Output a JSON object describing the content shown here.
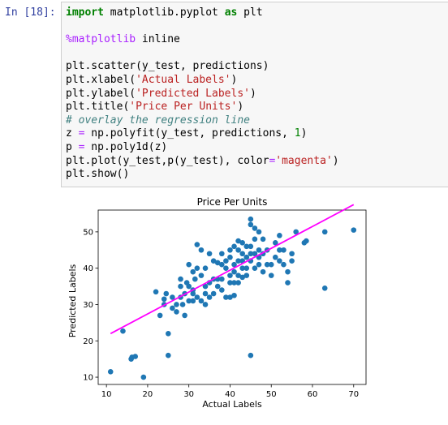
{
  "cell": {
    "prompt": "In [18]:",
    "lines": [
      [
        {
          "t": "import",
          "c": "kw"
        },
        {
          "t": " matplotlib.pyplot "
        },
        {
          "t": "as",
          "c": "kw"
        },
        {
          "t": " plt"
        }
      ],
      [],
      [
        {
          "t": "%matplotlib",
          "c": "mg"
        },
        {
          "t": " inline"
        }
      ],
      [],
      [
        {
          "t": "plt.scatter(y_test, predictions)"
        }
      ],
      [
        {
          "t": "plt.xlabel("
        },
        {
          "t": "'Actual Labels'",
          "c": "st"
        },
        {
          "t": ")"
        }
      ],
      [
        {
          "t": "plt.ylabel("
        },
        {
          "t": "'Predicted Labels'",
          "c": "st"
        },
        {
          "t": ")"
        }
      ],
      [
        {
          "t": "plt.title("
        },
        {
          "t": "'Price Per Units'",
          "c": "st"
        },
        {
          "t": ")"
        }
      ],
      [
        {
          "t": "# overlay the regression line",
          "c": "cm"
        }
      ],
      [
        {
          "t": "z "
        },
        {
          "t": "=",
          "c": "op"
        },
        {
          "t": " np.polyfit(y_test, predictions, "
        },
        {
          "t": "1",
          "c": "nm"
        },
        {
          "t": ")"
        }
      ],
      [
        {
          "t": "p "
        },
        {
          "t": "=",
          "c": "op"
        },
        {
          "t": " np.poly1d(z)"
        }
      ],
      [
        {
          "t": "plt.plot(y_test,p(y_test), color"
        },
        {
          "t": "=",
          "c": "op"
        },
        {
          "t": "'magenta'",
          "c": "st"
        },
        {
          "t": ")"
        }
      ],
      [
        {
          "t": "plt.show()"
        }
      ]
    ]
  },
  "chart_data": {
    "type": "scatter",
    "title": "Price Per Units",
    "xlabel": "Actual Labels",
    "ylabel": "Predicted Labels",
    "xlim": [
      8,
      73
    ],
    "ylim": [
      8,
      56
    ],
    "xticks": [
      10,
      20,
      30,
      40,
      50,
      60,
      70
    ],
    "yticks": [
      10,
      20,
      30,
      40,
      50
    ],
    "point_color": "#1f77b4",
    "line_color": "#ff00ff",
    "regression_line": {
      "x": [
        11,
        70
      ],
      "y": [
        22,
        57.5
      ]
    },
    "points": [
      [
        11,
        11.5
      ],
      [
        14,
        22.7
      ],
      [
        16,
        15
      ],
      [
        16.2,
        15.5
      ],
      [
        17,
        15.7
      ],
      [
        19,
        10
      ],
      [
        22,
        33.5
      ],
      [
        23,
        27
      ],
      [
        24,
        31.5
      ],
      [
        24,
        30
      ],
      [
        24.5,
        33
      ],
      [
        25,
        22
      ],
      [
        25,
        16
      ],
      [
        26,
        32
      ],
      [
        26,
        29
      ],
      [
        27,
        30
      ],
      [
        27,
        28
      ],
      [
        28,
        37
      ],
      [
        28,
        35
      ],
      [
        28,
        32
      ],
      [
        28.5,
        30
      ],
      [
        29,
        33
      ],
      [
        29,
        27
      ],
      [
        29.5,
        36
      ],
      [
        30,
        41
      ],
      [
        30,
        35
      ],
      [
        30,
        31
      ],
      [
        31,
        39
      ],
      [
        31,
        34
      ],
      [
        31,
        33
      ],
      [
        31,
        31
      ],
      [
        31.5,
        37
      ],
      [
        32,
        46.5
      ],
      [
        32,
        40
      ],
      [
        32,
        32
      ],
      [
        33,
        45
      ],
      [
        33,
        38
      ],
      [
        33,
        31
      ],
      [
        34,
        40
      ],
      [
        34,
        35
      ],
      [
        34,
        33
      ],
      [
        34,
        30
      ],
      [
        35,
        44
      ],
      [
        35,
        36
      ],
      [
        35,
        32
      ],
      [
        36,
        42
      ],
      [
        36,
        37
      ],
      [
        36,
        33
      ],
      [
        37,
        41.5
      ],
      [
        37,
        37
      ],
      [
        37,
        35
      ],
      [
        38,
        44
      ],
      [
        38,
        41
      ],
      [
        38,
        37
      ],
      [
        38,
        34
      ],
      [
        39,
        42
      ],
      [
        39,
        40
      ],
      [
        39,
        32
      ],
      [
        40,
        45
      ],
      [
        40,
        43
      ],
      [
        40,
        38
      ],
      [
        40,
        36
      ],
      [
        40,
        32
      ],
      [
        41,
        46
      ],
      [
        41,
        41
      ],
      [
        41,
        39
      ],
      [
        41,
        36
      ],
      [
        41,
        32.5
      ],
      [
        42,
        47.5
      ],
      [
        42,
        45
      ],
      [
        42,
        42
      ],
      [
        42,
        38
      ],
      [
        42,
        36
      ],
      [
        43,
        47
      ],
      [
        43,
        44
      ],
      [
        43,
        42
      ],
      [
        43,
        40
      ],
      [
        43,
        37.5
      ],
      [
        44,
        46
      ],
      [
        44,
        43
      ],
      [
        44,
        40
      ],
      [
        44,
        38
      ],
      [
        45,
        53.5
      ],
      [
        45,
        52
      ],
      [
        45,
        46
      ],
      [
        45,
        44
      ],
      [
        45,
        42
      ],
      [
        45,
        16
      ],
      [
        46,
        51
      ],
      [
        46,
        48
      ],
      [
        46,
        44
      ],
      [
        46,
        40
      ],
      [
        47,
        50
      ],
      [
        47,
        45
      ],
      [
        47,
        43
      ],
      [
        47,
        41
      ],
      [
        48,
        48
      ],
      [
        48,
        44
      ],
      [
        48,
        39
      ],
      [
        49,
        45
      ],
      [
        49,
        41
      ],
      [
        50,
        41
      ],
      [
        50,
        38
      ],
      [
        51,
        47
      ],
      [
        51,
        43
      ],
      [
        52,
        49
      ],
      [
        52,
        45
      ],
      [
        52,
        42
      ],
      [
        53,
        45
      ],
      [
        53,
        41
      ],
      [
        54,
        36
      ],
      [
        54,
        39
      ],
      [
        55,
        44
      ],
      [
        55,
        42
      ],
      [
        56,
        50
      ],
      [
        58,
        47
      ],
      [
        58.5,
        47.5
      ],
      [
        63,
        50
      ],
      [
        63,
        34.5
      ],
      [
        70,
        50.5
      ]
    ]
  }
}
